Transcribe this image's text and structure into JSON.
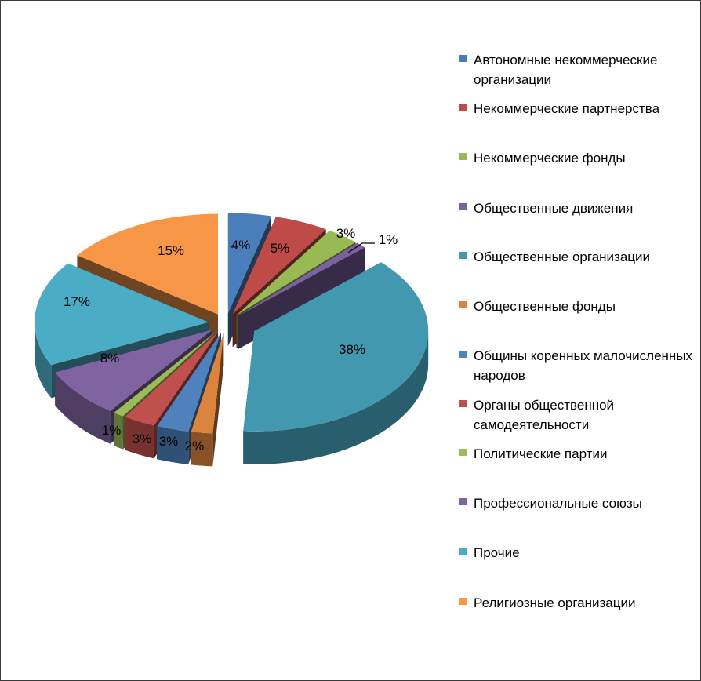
{
  "chart_data": {
    "type": "pie",
    "style": "3d-exploded",
    "legend_position": "right",
    "categories": [
      "Автономные некоммерческие организации",
      "Некоммерческие партнерства",
      "Некоммерческие фонды",
      "Общественные движения",
      "Общественные организации",
      "Общественные фонды",
      "Общины коренных малочисленных народов",
      "Органы общественной самодеятельности",
      "Политические партии",
      "Профессиональные союзы",
      "Прочие",
      "Религиозные организации"
    ],
    "values": [
      4,
      5,
      3,
      1,
      38,
      2,
      3,
      3,
      1,
      8,
      17,
      15
    ],
    "data_labels": [
      "4%",
      "5%",
      "3%",
      "1%",
      "38%",
      "2%",
      "3%",
      "3%",
      "1%",
      "8%",
      "17%",
      "15%"
    ],
    "colors": [
      "#4a7ebb",
      "#be4b48",
      "#98b954",
      "#7d60a0",
      "#4198af",
      "#db843d",
      "#4f81bd",
      "#c0504d",
      "#9bbb59",
      "#8064a2",
      "#4bacc6",
      "#f79646"
    ]
  }
}
